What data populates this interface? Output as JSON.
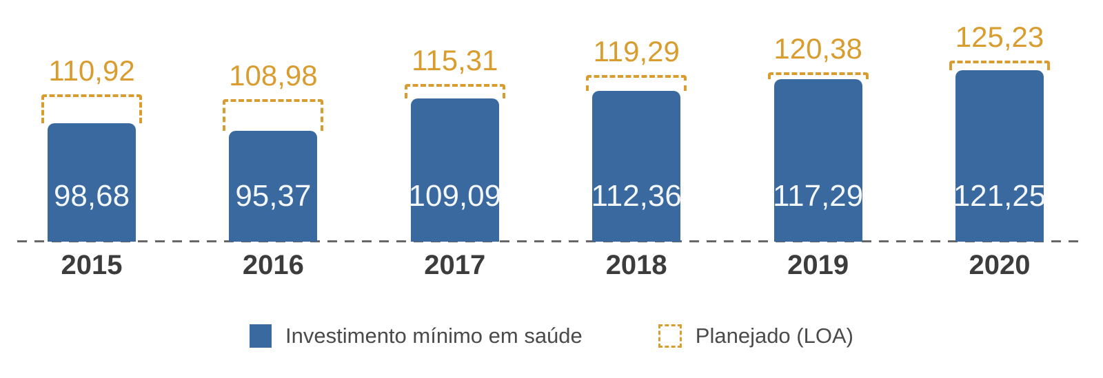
{
  "chart_data": {
    "type": "bar",
    "title": "",
    "categories": [
      "2015",
      "2016",
      "2017",
      "2018",
      "2019",
      "2020"
    ],
    "series": [
      {
        "name": "Investimento mínimo em saúde",
        "style": "solid-bar",
        "values": [
          98.68,
          95.37,
          109.09,
          112.36,
          117.29,
          121.25
        ],
        "labels": [
          "98,68",
          "95,37",
          "109,09",
          "112,36",
          "117,29",
          "121,25"
        ]
      },
      {
        "name": "Planejado (LOA)",
        "style": "dashed-outline",
        "values": [
          110.92,
          108.98,
          115.31,
          119.29,
          120.38,
          125.23
        ],
        "labels": [
          "110,92",
          "108,98",
          "115,31",
          "119,29",
          "120,38",
          "125,23"
        ]
      }
    ],
    "decimal_separator": ",",
    "grid": false,
    "baseline_style": "dashed",
    "legend_position": "bottom",
    "ylim": [
      48,
      130
    ]
  },
  "legend": {
    "items": [
      {
        "label": "Investimento mínimo em saúde",
        "swatch": "solid-blue-square"
      },
      {
        "label": "Planejado (LOA)",
        "swatch": "dashed-orange-square"
      }
    ]
  },
  "colors": {
    "bar_fill": "#39699E",
    "planned_outline": "#D99C2E",
    "bar_value_text": "#F4F7FA",
    "year_label_text": "#3C3C3C",
    "legend_text": "#4A4A4A",
    "baseline": "#666666",
    "background": "#FFFFFF"
  }
}
